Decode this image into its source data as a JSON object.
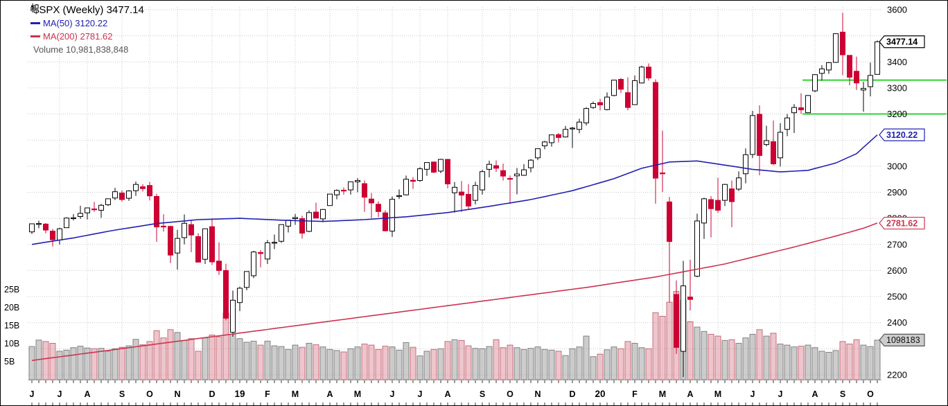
{
  "legend": {
    "title": "$SPX (Weekly) 3477.14",
    "ma50": "MA(50) 3120.22",
    "ma200": "MA(200) 2781.62",
    "volume": "Volume 10,981,838,848"
  },
  "colors": {
    "up": "#000000",
    "down": "#cc0033",
    "ma50": "#2020b0",
    "ma200": "#cc3350",
    "vol_up": "#909090",
    "vol_down": "#d97f8f",
    "support": "#2ed32e",
    "grid": "#c8c8c8"
  },
  "chart_data": {
    "type": "candlestick",
    "symbol": "$SPX",
    "timeframe": "Weekly",
    "title": "$SPX (Weekly) 3477.14",
    "ylim": [
      2200,
      3600
    ],
    "grid": true,
    "volume_axis_billions": [
      5,
      25
    ],
    "y_ticks": [
      "3600",
      "3400",
      "3300",
      "3200",
      "3000",
      "2900",
      "2800",
      "2700",
      "2600",
      "2500",
      "2400",
      "2200"
    ],
    "volume_ticks": [
      "25B",
      "20B",
      "15B",
      "10B",
      "5B"
    ],
    "x_labels": [
      "J",
      "J",
      "A",
      "S",
      "O",
      "N",
      "D",
      "19",
      "F",
      "M",
      "A",
      "M",
      "J",
      "J",
      "A",
      "S",
      "O",
      "N",
      "D",
      "20",
      "F",
      "M",
      "A",
      "M",
      "J",
      "J",
      "A",
      "S",
      "O"
    ],
    "price_labels": {
      "close": "3477.14",
      "ma50": "3120.22",
      "ma200": "2781.62",
      "volume": "1098183"
    },
    "last_values": {
      "close": 3477.14,
      "ma50": 3120.22,
      "ma200": 2781.62,
      "volume_billions": 10.98
    },
    "annotations": {
      "support_lines": [
        3330,
        3200
      ]
    },
    "ma50_points": [
      [
        0,
        2700
      ],
      [
        6,
        2725
      ],
      [
        12,
        2755
      ],
      [
        18,
        2780
      ],
      [
        24,
        2795
      ],
      [
        30,
        2800
      ],
      [
        36,
        2793
      ],
      [
        42,
        2788
      ],
      [
        48,
        2795
      ],
      [
        54,
        2806
      ],
      [
        60,
        2822
      ],
      [
        66,
        2846
      ],
      [
        72,
        2872
      ],
      [
        78,
        2906
      ],
      [
        84,
        2952
      ],
      [
        88,
        2992
      ],
      [
        92,
        3016
      ],
      [
        96,
        3020
      ],
      [
        100,
        3004
      ],
      [
        104,
        2988
      ],
      [
        108,
        2978
      ],
      [
        112,
        2984
      ],
      [
        116,
        3012
      ],
      [
        119,
        3048
      ],
      [
        122,
        3120
      ]
    ],
    "ma200_points": [
      [
        0,
        2255
      ],
      [
        10,
        2290
      ],
      [
        20,
        2325
      ],
      [
        30,
        2360
      ],
      [
        40,
        2395
      ],
      [
        50,
        2430
      ],
      [
        60,
        2465
      ],
      [
        70,
        2500
      ],
      [
        80,
        2535
      ],
      [
        90,
        2575
      ],
      [
        100,
        2625
      ],
      [
        110,
        2690
      ],
      [
        116,
        2732
      ],
      [
        120,
        2762
      ],
      [
        122,
        2782
      ]
    ],
    "weeks": [
      [
        "2018-06-08",
        2748,
        2779,
        2740,
        2779,
        9.2
      ],
      [
        "2018-06-15",
        2777,
        2791,
        2762,
        2780,
        11.0
      ],
      [
        "2018-06-22",
        2778,
        2782,
        2743,
        2755,
        10.6
      ],
      [
        "2018-06-29",
        2751,
        2759,
        2692,
        2718,
        10.1
      ],
      [
        "2018-07-06",
        2717,
        2764,
        2699,
        2760,
        7.9
      ],
      [
        "2018-07-13",
        2764,
        2804,
        2764,
        2801,
        8.2
      ],
      [
        "2018-07-20",
        2799,
        2816,
        2792,
        2802,
        8.9
      ],
      [
        "2018-07-27",
        2807,
        2848,
        2798,
        2819,
        9.3
      ],
      [
        "2018-08-03",
        2821,
        2840,
        2796,
        2840,
        8.8
      ],
      [
        "2018-08-10",
        2836,
        2863,
        2825,
        2833,
        8.6
      ],
      [
        "2018-08-17",
        2831,
        2855,
        2802,
        2850,
        8.7
      ],
      [
        "2018-08-24",
        2852,
        2876,
        2847,
        2875,
        7.9
      ],
      [
        "2018-08-31",
        2878,
        2917,
        2870,
        2902,
        8.6
      ],
      [
        "2018-09-07",
        2897,
        2907,
        2864,
        2872,
        9.0
      ],
      [
        "2018-09-14",
        2877,
        2908,
        2867,
        2905,
        9.4
      ],
      [
        "2018-09-21",
        2906,
        2941,
        2886,
        2930,
        11.2
      ],
      [
        "2018-09-28",
        2921,
        2931,
        2903,
        2914,
        9.7
      ],
      [
        "2018-10-05",
        2926,
        2940,
        2869,
        2886,
        10.6
      ],
      [
        "2018-10-12",
        2884,
        2894,
        2710,
        2767,
        13.6
      ],
      [
        "2018-10-19",
        2770,
        2816,
        2749,
        2768,
        11.6
      ],
      [
        "2018-10-26",
        2769,
        2772,
        2628,
        2659,
        13.9
      ],
      [
        "2018-11-02",
        2667,
        2756,
        2603,
        2723,
        13.1
      ],
      [
        "2018-11-09",
        2726,
        2815,
        2700,
        2781,
        10.9
      ],
      [
        "2018-11-16",
        2776,
        2795,
        2670,
        2736,
        11.4
      ],
      [
        "2018-11-23",
        2730,
        2743,
        2631,
        2632,
        7.9
      ],
      [
        "2018-11-30",
        2643,
        2760,
        2625,
        2760,
        11.6
      ],
      [
        "2018-12-07",
        2768,
        2800,
        2621,
        2633,
        12.4
      ],
      [
        "2018-12-14",
        2636,
        2708,
        2583,
        2600,
        11.9
      ],
      [
        "2018-12-21",
        2600,
        2626,
        2409,
        2417,
        18.5
      ],
      [
        "2018-12-28",
        2363,
        2523,
        2346,
        2486,
        12.6
      ],
      [
        "2019-01-04",
        2477,
        2538,
        2444,
        2532,
        11.4
      ],
      [
        "2019-01-11",
        2535,
        2597,
        2524,
        2596,
        10.4
      ],
      [
        "2019-01-18",
        2580,
        2675,
        2571,
        2671,
        10.7
      ],
      [
        "2019-01-25",
        2669,
        2678,
        2612,
        2665,
        9.6
      ],
      [
        "2019-02-01",
        2644,
        2717,
        2625,
        2706,
        10.7
      ],
      [
        "2019-02-08",
        2707,
        2738,
        2682,
        2708,
        9.4
      ],
      [
        "2019-02-15",
        2712,
        2776,
        2706,
        2776,
        9.2
      ],
      [
        "2019-02-22",
        2770,
        2794,
        2746,
        2793,
        8.4
      ],
      [
        "2019-03-01",
        2799,
        2817,
        2775,
        2803,
        9.6
      ],
      [
        "2019-03-08",
        2799,
        2810,
        2722,
        2743,
        9.0
      ],
      [
        "2019-03-15",
        2750,
        2831,
        2747,
        2822,
        10.1
      ],
      [
        "2019-03-22",
        2824,
        2860,
        2800,
        2801,
        9.7
      ],
      [
        "2019-03-29",
        2798,
        2836,
        2785,
        2834,
        9.1
      ],
      [
        "2019-04-05",
        2849,
        2893,
        2848,
        2893,
        8.4
      ],
      [
        "2019-04-12",
        2890,
        2911,
        2873,
        2907,
        8.1
      ],
      [
        "2019-04-18",
        2908,
        2918,
        2891,
        2905,
        7.7
      ],
      [
        "2019-04-26",
        2909,
        2940,
        2891,
        2940,
        8.6
      ],
      [
        "2019-05-03",
        2940,
        2954,
        2900,
        2945,
        9.1
      ],
      [
        "2019-05-10",
        2933,
        2945,
        2825,
        2881,
        9.9
      ],
      [
        "2019-05-17",
        2874,
        2897,
        2801,
        2859,
        9.6
      ],
      [
        "2019-05-24",
        2854,
        2865,
        2805,
        2826,
        8.4
      ],
      [
        "2019-05-31",
        2821,
        2831,
        2750,
        2752,
        9.3
      ],
      [
        "2019-06-07",
        2751,
        2884,
        2729,
        2873,
        9.1
      ],
      [
        "2019-06-14",
        2886,
        2911,
        2874,
        2887,
        8.2
      ],
      [
        "2019-06-21",
        2890,
        2964,
        2888,
        2950,
        10.3
      ],
      [
        "2019-06-28",
        2946,
        2958,
        2913,
        2942,
        9.0
      ],
      [
        "2019-07-05",
        2945,
        2996,
        2940,
        2990,
        6.6
      ],
      [
        "2019-07-12",
        2988,
        3014,
        2963,
        3014,
        7.9
      ],
      [
        "2019-07-19",
        3016,
        3018,
        2973,
        2977,
        8.4
      ],
      [
        "2019-07-26",
        2981,
        3028,
        2973,
        3026,
        8.6
      ],
      [
        "2019-08-02",
        3026,
        3028,
        2915,
        2932,
        10.6
      ],
      [
        "2019-08-09",
        2898,
        2939,
        2822,
        2919,
        11.1
      ],
      [
        "2019-08-16",
        2901,
        2943,
        2825,
        2889,
        10.9
      ],
      [
        "2019-08-23",
        2892,
        2931,
        2834,
        2847,
        9.4
      ],
      [
        "2019-08-30",
        2869,
        2940,
        2853,
        2926,
        8.7
      ],
      [
        "2019-09-06",
        2909,
        2986,
        2891,
        2979,
        8.6
      ],
      [
        "2019-09-13",
        2988,
        3021,
        2957,
        3007,
        9.2
      ],
      [
        "2019-09-20",
        3002,
        3022,
        2978,
        2992,
        11.1
      ],
      [
        "2019-09-27",
        2983,
        3010,
        2945,
        2962,
        8.9
      ],
      [
        "2019-10-04",
        2953,
        2964,
        2855,
        2952,
        9.6
      ],
      [
        "2019-10-11",
        2963,
        2993,
        2892,
        2970,
        8.9
      ],
      [
        "2019-10-18",
        2965,
        3008,
        2963,
        2986,
        8.4
      ],
      [
        "2019-10-25",
        2994,
        3027,
        2976,
        3023,
        8.7
      ],
      [
        "2019-11-01",
        3032,
        3066,
        3023,
        3067,
        9.1
      ],
      [
        "2019-11-08",
        3078,
        3097,
        3065,
        3093,
        8.4
      ],
      [
        "2019-11-15",
        3090,
        3120,
        3075,
        3120,
        8.2
      ],
      [
        "2019-11-22",
        3121,
        3127,
        3091,
        3110,
        7.9
      ],
      [
        "2019-11-29",
        3112,
        3154,
        3110,
        3141,
        6.7
      ],
      [
        "2019-12-06",
        3143,
        3151,
        3070,
        3146,
        8.6
      ],
      [
        "2019-12-13",
        3141,
        3182,
        3126,
        3169,
        9.1
      ],
      [
        "2019-12-20",
        3166,
        3226,
        3156,
        3221,
        12.1
      ],
      [
        "2019-12-27",
        3225,
        3248,
        3220,
        3240,
        6.4
      ],
      [
        "2020-01-03",
        3244,
        3258,
        3214,
        3235,
        7.1
      ],
      [
        "2020-01-10",
        3217,
        3283,
        3214,
        3265,
        8.3
      ],
      [
        "2020-01-17",
        3271,
        3330,
        3268,
        3330,
        9.1
      ],
      [
        "2020-01-24",
        3333,
        3338,
        3281,
        3295,
        8.6
      ],
      [
        "2020-01-31",
        3282,
        3341,
        3214,
        3225,
        10.6
      ],
      [
        "2020-02-07",
        3236,
        3348,
        3235,
        3328,
        10.1
      ],
      [
        "2020-02-14",
        3319,
        3385,
        3317,
        3380,
        8.9
      ],
      [
        "2020-02-21",
        3380,
        3394,
        3328,
        3338,
        8.6
      ],
      [
        "2020-02-28",
        3321,
        3333,
        2856,
        2954,
        18.6
      ],
      [
        "2020-03-06",
        2974,
        3136,
        2901,
        2972,
        17.6
      ],
      [
        "2020-03-13",
        2863,
        2882,
        2478,
        2711,
        21.5
      ],
      [
        "2020-03-20",
        2508,
        2562,
        2280,
        2305,
        24.5
      ],
      [
        "2020-03-27",
        2290,
        2637,
        2191,
        2541,
        22.0
      ],
      [
        "2020-04-03",
        2498,
        2641,
        2447,
        2489,
        16.1
      ],
      [
        "2020-04-09",
        2578,
        2818,
        2574,
        2790,
        14.6
      ],
      [
        "2020-04-17",
        2782,
        2879,
        2721,
        2875,
        13.4
      ],
      [
        "2020-04-24",
        2872,
        2885,
        2727,
        2837,
        12.6
      ],
      [
        "2020-05-01",
        2869,
        2955,
        2821,
        2831,
        12.1
      ],
      [
        "2020-05-08",
        2869,
        2932,
        2847,
        2930,
        10.9
      ],
      [
        "2020-05-15",
        2913,
        2945,
        2766,
        2864,
        11.1
      ],
      [
        "2020-05-22",
        2912,
        2980,
        2905,
        2955,
        10.1
      ],
      [
        "2020-05-29",
        2971,
        3068,
        2934,
        3044,
        11.6
      ],
      [
        "2020-06-05",
        3045,
        3212,
        3031,
        3194,
        12.6
      ],
      [
        "2020-06-12",
        3199,
        3233,
        2965,
        3041,
        13.9
      ],
      [
        "2020-06-19",
        3083,
        3155,
        3076,
        3098,
        12.1
      ],
      [
        "2020-06-26",
        3094,
        3175,
        3004,
        3009,
        12.9
      ],
      [
        "2020-07-02",
        3032,
        3165,
        2999,
        3130,
        9.9
      ],
      [
        "2020-07-10",
        3141,
        3200,
        3115,
        3185,
        9.6
      ],
      [
        "2020-07-17",
        3205,
        3238,
        3127,
        3225,
        9.1
      ],
      [
        "2020-07-24",
        3224,
        3280,
        3200,
        3216,
        9.3
      ],
      [
        "2020-07-31",
        3205,
        3273,
        3205,
        3271,
        9.6
      ],
      [
        "2020-08-07",
        3289,
        3352,
        3284,
        3351,
        8.9
      ],
      [
        "2020-08-14",
        3356,
        3387,
        3328,
        3373,
        7.9
      ],
      [
        "2020-08-21",
        3369,
        3399,
        3354,
        3397,
        7.6
      ],
      [
        "2020-08-28",
        3398,
        3509,
        3396,
        3508,
        8.1
      ],
      [
        "2020-09-04",
        3514,
        3588,
        3349,
        3427,
        10.6
      ],
      [
        "2020-09-11",
        3425,
        3426,
        3310,
        3341,
        9.9
      ],
      [
        "2020-09-18",
        3364,
        3420,
        3292,
        3319,
        11.1
      ],
      [
        "2020-09-25",
        3292,
        3324,
        3209,
        3298,
        9.6
      ],
      [
        "2020-10-02",
        3305,
        3397,
        3268,
        3348,
        9.2
      ],
      [
        "2020-10-09",
        3352,
        3482,
        3352,
        3477.14,
        10.98
      ]
    ]
  }
}
